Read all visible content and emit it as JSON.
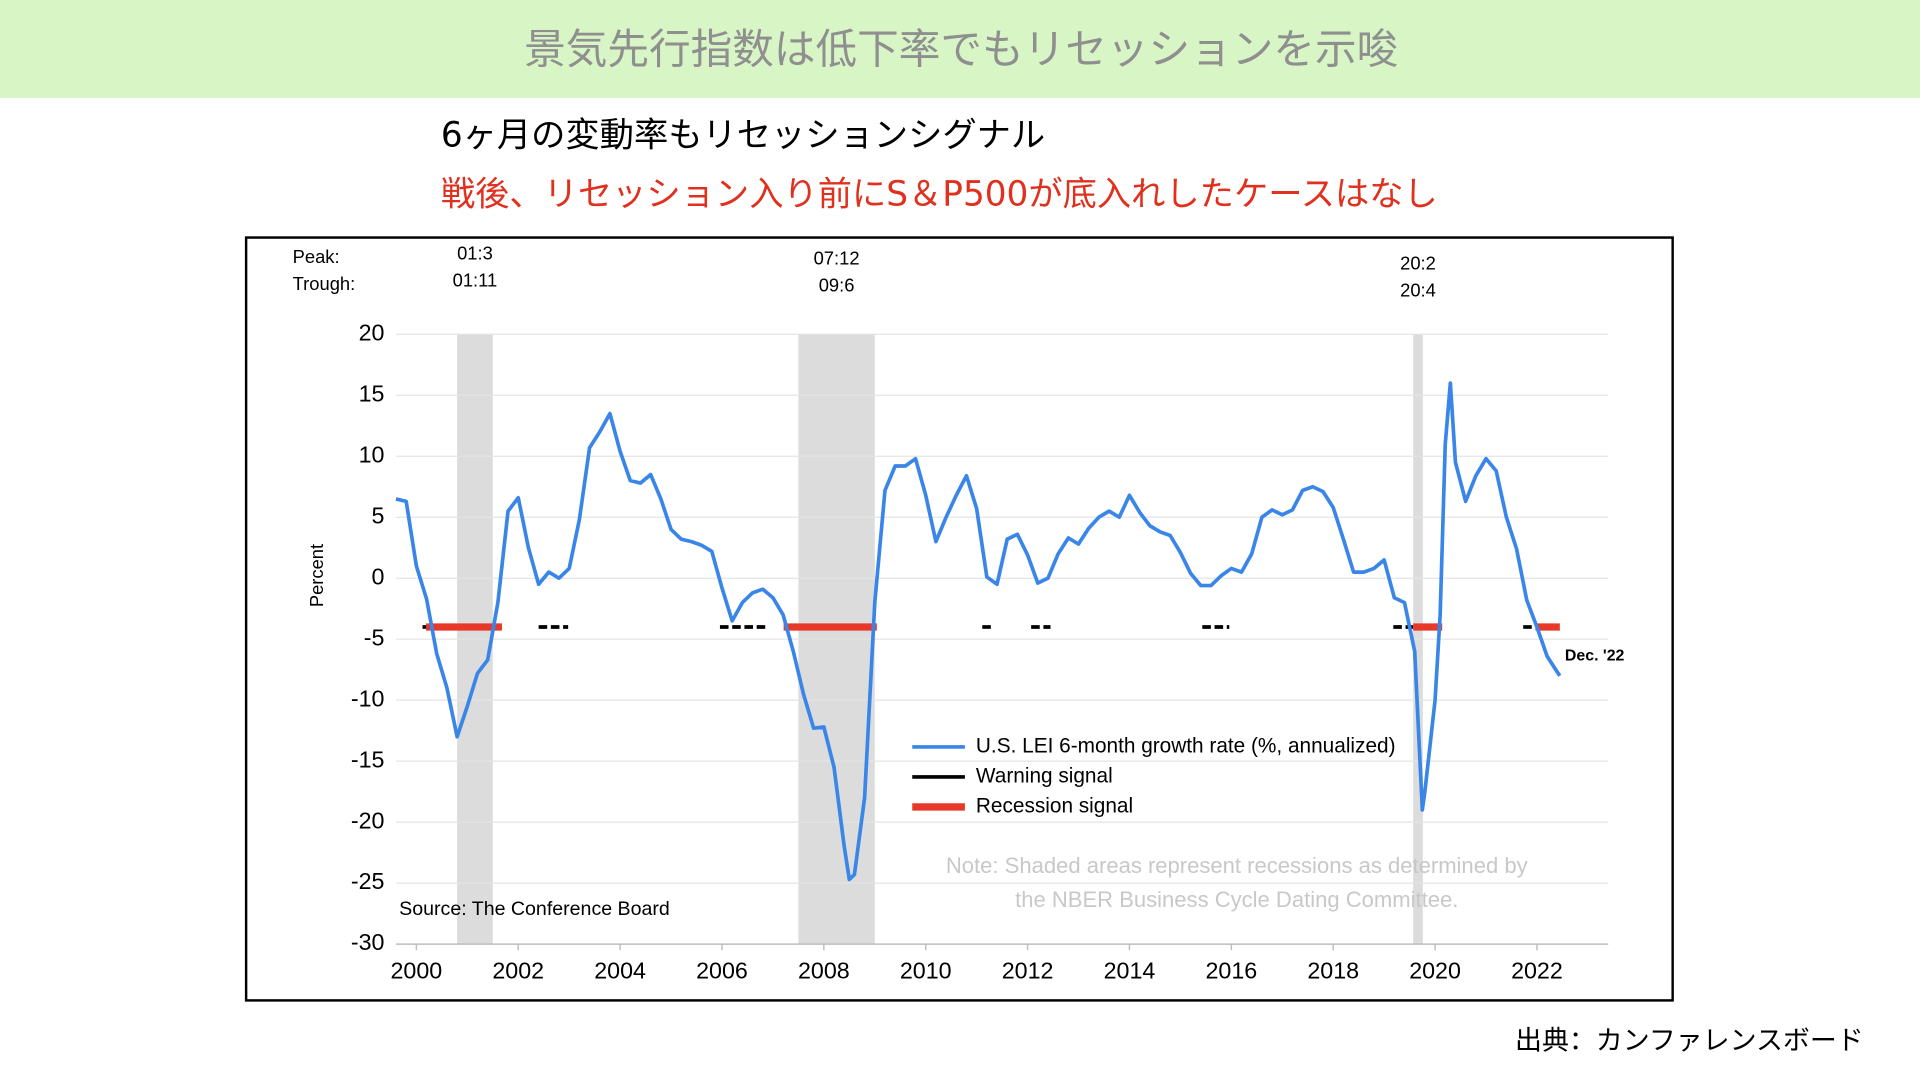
{
  "slide": {
    "title": "景気先行指数は低下率でもリセッションを示唆",
    "subtitle": "6ヶ月の変動率もリセッションシグナル",
    "highlight": "戦後、リセッション入り前にS＆P500が底入れしたケースはなし",
    "credit": "出典：カンファレンスボード"
  },
  "chart_data": {
    "type": "line",
    "ylabel": "Percent",
    "xlim": [
      1999.6,
      2023.4
    ],
    "ylim": [
      -30,
      20
    ],
    "xticks": [
      2000,
      2002,
      2004,
      2006,
      2008,
      2010,
      2012,
      2014,
      2016,
      2018,
      2020,
      2022
    ],
    "yticks": [
      -30,
      -25,
      -20,
      -15,
      -10,
      -5,
      0,
      5,
      10,
      15,
      20
    ],
    "grid": true,
    "series": [
      {
        "name": "U.S. LEI 6-month growth rate (%, annualized)",
        "color": "#3a86e8",
        "x": [
          1999.6,
          1999.8,
          2000.0,
          2000.2,
          2000.4,
          2000.6,
          2000.8,
          2001.0,
          2001.2,
          2001.4,
          2001.6,
          2001.8,
          2002.0,
          2002.2,
          2002.4,
          2002.6,
          2002.8,
          2003.0,
          2003.2,
          2003.4,
          2003.6,
          2003.8,
          2004.0,
          2004.2,
          2004.4,
          2004.6,
          2004.8,
          2005.0,
          2005.2,
          2005.4,
          2005.6,
          2005.8,
          2006.0,
          2006.2,
          2006.4,
          2006.6,
          2006.8,
          2007.0,
          2007.2,
          2007.4,
          2007.6,
          2007.8,
          2008.0,
          2008.2,
          2008.4,
          2008.5,
          2008.6,
          2008.8,
          2009.0,
          2009.2,
          2009.4,
          2009.6,
          2009.8,
          2010.0,
          2010.2,
          2010.4,
          2010.6,
          2010.8,
          2011.0,
          2011.2,
          2011.4,
          2011.6,
          2011.8,
          2012.0,
          2012.2,
          2012.4,
          2012.6,
          2012.8,
          2013.0,
          2013.2,
          2013.4,
          2013.6,
          2013.8,
          2014.0,
          2014.2,
          2014.4,
          2014.6,
          2014.8,
          2015.0,
          2015.2,
          2015.4,
          2015.6,
          2015.8,
          2016.0,
          2016.2,
          2016.4,
          2016.6,
          2016.8,
          2017.0,
          2017.2,
          2017.4,
          2017.6,
          2017.8,
          2018.0,
          2018.2,
          2018.4,
          2018.6,
          2018.8,
          2019.0,
          2019.2,
          2019.4,
          2019.6,
          2019.75,
          2019.8,
          2020.0,
          2020.1,
          2020.2,
          2020.3,
          2020.4,
          2020.6,
          2020.8,
          2021.0,
          2021.2,
          2021.4,
          2021.6,
          2021.8,
          2022.0,
          2022.2,
          2022.4,
          2022.45
        ],
        "values": [
          6.5,
          6.3,
          1,
          -1.7,
          -6.2,
          -9,
          -13,
          -10.5,
          -7.8,
          -6.7,
          -2,
          5.5,
          6.6,
          2.5,
          -0.5,
          0.5,
          0,
          0.8,
          4.8,
          10.7,
          12,
          13.5,
          10.4,
          8,
          7.8,
          8.5,
          6.5,
          4,
          3.2,
          3,
          2.7,
          2.2,
          -0.8,
          -3.5,
          -2,
          -1.2,
          -0.9,
          -1.6,
          -3,
          -6,
          -9.5,
          -12.3,
          -12.2,
          -15.5,
          -22,
          -24.7,
          -24.3,
          -18,
          -2,
          7.2,
          9.2,
          9.2,
          9.8,
          6.8,
          3,
          5,
          6.8,
          8.4,
          5.7,
          0.1,
          -0.5,
          3.2,
          3.6,
          1.9,
          -0.4,
          0,
          2,
          3.3,
          2.8,
          4.1,
          5,
          5.5,
          5,
          6.8,
          5.4,
          4.3,
          3.8,
          3.5,
          2.1,
          0.4,
          -0.6,
          -0.6,
          0.2,
          0.8,
          0.5,
          2,
          5,
          5.6,
          5.2,
          5.6,
          7.2,
          7.5,
          7.1,
          5.8,
          3.2,
          0.5,
          0.5,
          0.8,
          1.5,
          -1.6,
          -2,
          -6,
          -19,
          -17.5,
          -10,
          -3,
          11,
          16,
          9.5,
          6.3,
          8.4,
          9.8,
          8.8,
          5,
          2.4,
          -1.8,
          -4,
          -6.4,
          -7.7,
          -8
        ]
      }
    ],
    "signals": [
      {
        "name": "Warning signal",
        "color": "#000000",
        "level": -4,
        "segments": [
          [
            2000.12,
            2000.29
          ],
          [
            2002.4,
            2002.98
          ],
          [
            2005.96,
            2006.92
          ],
          [
            2011.11,
            2011.35
          ],
          [
            2012.07,
            2012.45
          ],
          [
            2015.43,
            2015.96
          ],
          [
            2019.18,
            2019.57
          ],
          [
            2021.73,
            2021.97
          ]
        ]
      },
      {
        "name": "Recession signal",
        "color": "#e8382a",
        "level": -4,
        "segments": [
          [
            2000.19,
            2001.68
          ],
          [
            2007.21,
            2009.04
          ],
          [
            2019.57,
            2020.14
          ],
          [
            2021.97,
            2022.45
          ]
        ]
      }
    ],
    "recession_color": "#dcdcdc",
    "recessions": [
      {
        "start": 2000.8,
        "end": 2001.5,
        "peak": "01:3",
        "trough": "01:11"
      },
      {
        "start": 2007.5,
        "end": 2009.0,
        "peak": "07:12",
        "trough": "09:6"
      },
      {
        "start": 2019.57,
        "end": 2019.76,
        "peak": "20:2",
        "trough": "20:4"
      }
    ],
    "annotations": {
      "peak_label": "Peak:",
      "trough_label": "Trough:",
      "last_point": "Dec. '22",
      "source": "Source: The Conference Board",
      "note": [
        "Note: Shaded areas represent recessions as determined by",
        "the NBER Business Cycle Dating Committee."
      ]
    }
  }
}
